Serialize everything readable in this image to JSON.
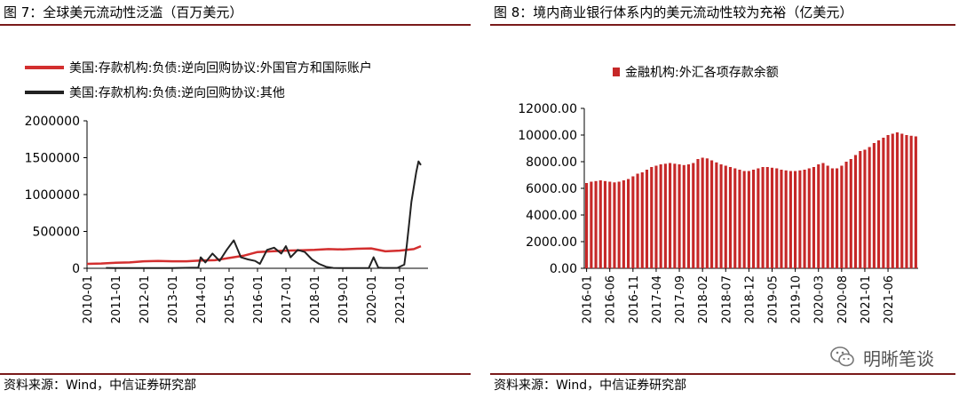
{
  "left": {
    "title": "图 7：全球美元流动性泛滥（百万美元）",
    "source": "资料来源：Wind，中信证券研究部",
    "chart_data": {
      "type": "line",
      "title": "全球美元流动性泛滥（百万美元）",
      "xlabel": "",
      "ylabel": "",
      "x_ticks": [
        "2010-01",
        "2011-01",
        "2012-01",
        "2013-01",
        "2014-01",
        "2015-01",
        "2016-01",
        "2017-01",
        "2018-01",
        "2019-01",
        "2020-01",
        "2021-01"
      ],
      "y_ticks": [
        "0",
        "500000",
        "1000000",
        "1500000",
        "2000000"
      ],
      "ylim": [
        0,
        2000000
      ],
      "xlim": [
        "2010-01",
        "2022-01"
      ],
      "grid": false,
      "legend_position": "top-left",
      "series": [
        {
          "name": "美国:存款机构:负债:逆向回购协议:外国官方和国际账户",
          "color": "#d32f2f",
          "x": [
            "2010-01",
            "2010-07",
            "2011-01",
            "2011-07",
            "2012-01",
            "2012-07",
            "2013-01",
            "2013-07",
            "2014-01",
            "2014-07",
            "2015-01",
            "2015-07",
            "2016-01",
            "2016-07",
            "2017-01",
            "2017-07",
            "2018-01",
            "2018-07",
            "2019-01",
            "2019-07",
            "2020-01",
            "2020-07",
            "2021-01",
            "2021-07",
            "2021-10"
          ],
          "values": [
            60000,
            65000,
            75000,
            80000,
            95000,
            100000,
            95000,
            95000,
            105000,
            110000,
            140000,
            170000,
            220000,
            230000,
            240000,
            245000,
            250000,
            260000,
            255000,
            265000,
            270000,
            230000,
            240000,
            260000,
            300000
          ]
        },
        {
          "name": "美国:存款机构:负债:逆向回购协议:其他",
          "color": "#222222",
          "x": [
            "2010-09",
            "2011-01",
            "2012-01",
            "2013-01",
            "2013-12",
            "2014-01",
            "2014-03",
            "2014-06",
            "2014-09",
            "2014-12",
            "2015-03",
            "2015-06",
            "2015-09",
            "2015-12",
            "2016-02",
            "2016-05",
            "2016-08",
            "2016-11",
            "2017-01",
            "2017-03",
            "2017-06",
            "2017-09",
            "2017-12",
            "2018-03",
            "2018-06",
            "2018-09",
            "2019-01",
            "2019-07",
            "2019-12",
            "2020-02",
            "2020-04",
            "2020-06",
            "2020-12",
            "2021-03",
            "2021-04",
            "2021-05",
            "2021-06",
            "2021-07",
            "2021-08",
            "2021-09",
            "2021-10"
          ],
          "values": [
            5000,
            2000,
            3000,
            4000,
            8000,
            150000,
            80000,
            200000,
            100000,
            250000,
            380000,
            150000,
            120000,
            100000,
            60000,
            250000,
            280000,
            200000,
            300000,
            150000,
            250000,
            220000,
            120000,
            60000,
            20000,
            5000,
            3000,
            3000,
            3000,
            150000,
            10000,
            5000,
            5000,
            50000,
            300000,
            600000,
            900000,
            1100000,
            1300000,
            1450000,
            1400000
          ]
        }
      ]
    }
  },
  "right": {
    "title": "图 8：境内商业银行体系内的美元流动性较为充裕（亿美元）",
    "source": "资料来源：Wind，中信证券研究部",
    "watermark": "明晰笔谈",
    "chart_data": {
      "type": "bar",
      "title": "境内商业银行体系内的美元流动性较为充裕（亿美元）",
      "xlabel": "",
      "ylabel": "",
      "ylim": [
        0,
        12000
      ],
      "y_ticks": [
        "0.00",
        "2000.00",
        "4000.00",
        "6000.00",
        "8000.00",
        "10000.00",
        "12000.00"
      ],
      "x_ticks": [
        "2016-01",
        "2016-06",
        "2016-11",
        "2017-04",
        "2017-09",
        "2018-02",
        "2018-07",
        "2018-12",
        "2019-05",
        "2019-10",
        "2020-03",
        "2020-08",
        "2021-01",
        "2021-06"
      ],
      "grid": false,
      "legend_position": "top",
      "series": [
        {
          "name": "金融机构:外汇各项存款余额",
          "color": "#c62828",
          "start": "2016-01",
          "values": [
            6400,
            6500,
            6550,
            6600,
            6550,
            6500,
            6450,
            6500,
            6600,
            6700,
            6900,
            7100,
            7200,
            7400,
            7600,
            7700,
            7800,
            7850,
            7900,
            7850,
            7800,
            7750,
            7800,
            7900,
            8200,
            8300,
            8250,
            8100,
            7950,
            7800,
            7700,
            7600,
            7500,
            7400,
            7300,
            7300,
            7400,
            7500,
            7600,
            7600,
            7550,
            7500,
            7400,
            7350,
            7300,
            7300,
            7350,
            7400,
            7500,
            7600,
            7800,
            7900,
            7700,
            7500,
            7500,
            7700,
            8000,
            8200,
            8500,
            8800,
            8900,
            9100,
            9400,
            9600,
            9800,
            10000,
            10100,
            10200,
            10100,
            10000,
            9950,
            9900
          ]
        }
      ]
    }
  }
}
